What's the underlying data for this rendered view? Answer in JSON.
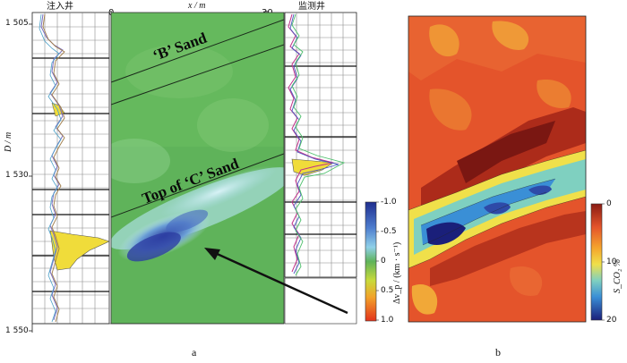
{
  "panel_a": {
    "injection_well_label": "注入井",
    "monitor_well_label": "监测井",
    "depth_axis_label": "D / m",
    "depth_ticks": [
      "1 505",
      "1 530",
      "1 550"
    ],
    "x_axis_label": "x / m",
    "x_ticks": [
      "0",
      "30"
    ],
    "b_sand_label": "‘B’ Sand",
    "c_sand_label": "Top of ‘C’ Sand",
    "colorbar_label": "Δv_p / (km · s⁻¹)",
    "colorbar_ticks": [
      "-1.0",
      "-0.5",
      "0",
      "0.5",
      "1.0"
    ],
    "caption": "a"
  },
  "panel_b": {
    "colorbar_label": "S_CO₂ %",
    "colorbar_ticks": [
      "0",
      "10",
      "20"
    ],
    "caption": "b"
  },
  "colors": {
    "seismic_green": "#5fb35a",
    "seismic_blue": "#3a55b0",
    "map_red": "#e4542b",
    "map_dark": "#8a1c14",
    "map_yellow": "#f0e04a",
    "map_cyan": "#55c6d6"
  }
}
